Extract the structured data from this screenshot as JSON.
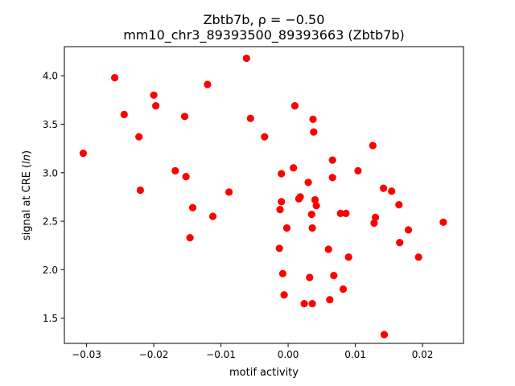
{
  "chart_data": {
    "type": "scatter",
    "title_line1": "Zbtb7b, ρ = −0.50",
    "title_line2": "mm10_chr3_89393500_89393663 (Zbtb7b)",
    "xlabel": "motif activity",
    "ylabel": "signal at CRE (ln)",
    "xlim": [
      -0.0333,
      0.0261
    ],
    "ylim": [
      1.24,
      4.3
    ],
    "xticks": [
      -0.03,
      -0.02,
      -0.01,
      0.0,
      0.01,
      0.02
    ],
    "xtick_labels": [
      "−0.03",
      "−0.02",
      "−0.01",
      "0.00",
      "0.01",
      "0.02"
    ],
    "yticks": [
      1.5,
      2.0,
      2.5,
      3.0,
      3.5,
      4.0
    ],
    "ytick_labels": [
      "1.5",
      "2.0",
      "2.5",
      "3.0",
      "3.5",
      "4.0"
    ],
    "grid": false,
    "point_color": "#ff0000",
    "points": [
      {
        "x": -0.0305,
        "y": 3.2
      },
      {
        "x": -0.0258,
        "y": 3.98
      },
      {
        "x": -0.0244,
        "y": 3.6
      },
      {
        "x": -0.0222,
        "y": 3.37
      },
      {
        "x": -0.022,
        "y": 2.82
      },
      {
        "x": -0.02,
        "y": 3.8
      },
      {
        "x": -0.0197,
        "y": 3.69
      },
      {
        "x": -0.0168,
        "y": 3.02
      },
      {
        "x": -0.0154,
        "y": 3.58
      },
      {
        "x": -0.0152,
        "y": 2.96
      },
      {
        "x": -0.0146,
        "y": 2.33
      },
      {
        "x": -0.0142,
        "y": 2.64
      },
      {
        "x": -0.012,
        "y": 3.91
      },
      {
        "x": -0.0112,
        "y": 2.55
      },
      {
        "x": -0.0088,
        "y": 2.8
      },
      {
        "x": -0.0062,
        "y": 4.18
      },
      {
        "x": -0.0056,
        "y": 3.56
      },
      {
        "x": -0.0035,
        "y": 3.37
      },
      {
        "x": -0.0013,
        "y": 2.22
      },
      {
        "x": -0.0012,
        "y": 2.62
      },
      {
        "x": -0.001,
        "y": 2.99
      },
      {
        "x": -0.001,
        "y": 2.7
      },
      {
        "x": -0.0008,
        "y": 1.96
      },
      {
        "x": -0.0006,
        "y": 1.74
      },
      {
        "x": -0.0002,
        "y": 2.43
      },
      {
        "x": 0.0008,
        "y": 3.05
      },
      {
        "x": 0.001,
        "y": 3.69
      },
      {
        "x": 0.0016,
        "y": 2.73
      },
      {
        "x": 0.0018,
        "y": 2.75
      },
      {
        "x": 0.0024,
        "y": 1.65
      },
      {
        "x": 0.003,
        "y": 2.9
      },
      {
        "x": 0.0032,
        "y": 1.92
      },
      {
        "x": 0.0035,
        "y": 2.57
      },
      {
        "x": 0.0036,
        "y": 2.43
      },
      {
        "x": 0.0036,
        "y": 1.65
      },
      {
        "x": 0.0037,
        "y": 3.55
      },
      {
        "x": 0.0038,
        "y": 3.42
      },
      {
        "x": 0.004,
        "y": 2.72
      },
      {
        "x": 0.0042,
        "y": 2.66
      },
      {
        "x": 0.006,
        "y": 2.21
      },
      {
        "x": 0.0062,
        "y": 1.69
      },
      {
        "x": 0.0066,
        "y": 3.13
      },
      {
        "x": 0.0066,
        "y": 2.95
      },
      {
        "x": 0.0068,
        "y": 1.94
      },
      {
        "x": 0.0078,
        "y": 2.58
      },
      {
        "x": 0.0082,
        "y": 1.8
      },
      {
        "x": 0.0086,
        "y": 2.58
      },
      {
        "x": 0.009,
        "y": 2.13
      },
      {
        "x": 0.0104,
        "y": 3.02
      },
      {
        "x": 0.0126,
        "y": 3.28
      },
      {
        "x": 0.0128,
        "y": 2.48
      },
      {
        "x": 0.013,
        "y": 2.54
      },
      {
        "x": 0.0142,
        "y": 2.84
      },
      {
        "x": 0.0143,
        "y": 1.33
      },
      {
        "x": 0.0154,
        "y": 2.81
      },
      {
        "x": 0.0165,
        "y": 2.67
      },
      {
        "x": 0.0166,
        "y": 2.28
      },
      {
        "x": 0.0179,
        "y": 2.41
      },
      {
        "x": 0.0194,
        "y": 2.13
      },
      {
        "x": 0.0231,
        "y": 2.49
      }
    ]
  }
}
